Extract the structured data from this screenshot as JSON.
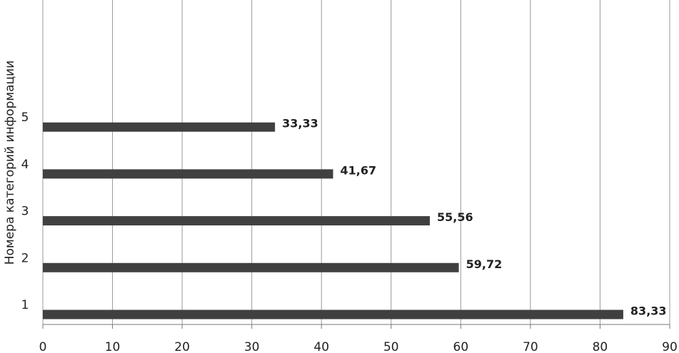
{
  "chart_data": {
    "type": "bar",
    "orientation": "horizontal",
    "y_axis_label": "Номера категорий информации",
    "categories": [
      "1",
      "2",
      "3",
      "4",
      "5"
    ],
    "values": [
      83.33,
      59.72,
      55.56,
      41.67,
      33.33
    ],
    "value_labels": [
      "83,33",
      "59,72",
      "55,56",
      "41,67",
      "33,33"
    ],
    "color": "#404040",
    "xlim": [
      0,
      90
    ],
    "xticks": [
      0,
      10,
      20,
      30,
      40,
      50,
      60,
      70,
      80,
      90
    ],
    "grid": true
  }
}
